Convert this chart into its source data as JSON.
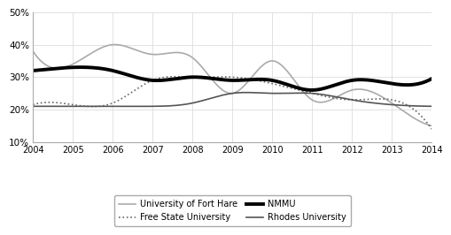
{
  "years": [
    2004,
    2005,
    2006,
    2007,
    2008,
    2009,
    2010,
    2011,
    2012,
    2013,
    2014
  ],
  "fort_hare": [
    38,
    34,
    40,
    37,
    36,
    25,
    35,
    23,
    26,
    22,
    15
  ],
  "free_state": [
    21.5,
    21.5,
    22,
    29,
    30,
    30,
    28,
    25,
    23,
    23,
    14
  ],
  "nmmu": [
    32,
    33,
    32,
    29,
    30,
    29,
    29,
    26,
    29,
    28,
    29.5
  ],
  "rhodes": [
    21,
    21,
    21,
    21,
    22,
    25,
    25,
    25,
    23,
    21.5,
    21
  ],
  "ylim": [
    10,
    50
  ],
  "yticks": [
    10,
    20,
    30,
    40,
    50
  ],
  "xlim": [
    2004,
    2014
  ],
  "fort_hare_color": "#aaaaaa",
  "free_state_color": "#666666",
  "nmmu_color": "#000000",
  "rhodes_color": "#555555",
  "grid_color": "#dddddd",
  "bg_color": "#ffffff",
  "legend_entries": [
    "University of Fort Hare",
    "Free State University",
    "NMMU",
    "Rhodes University"
  ]
}
